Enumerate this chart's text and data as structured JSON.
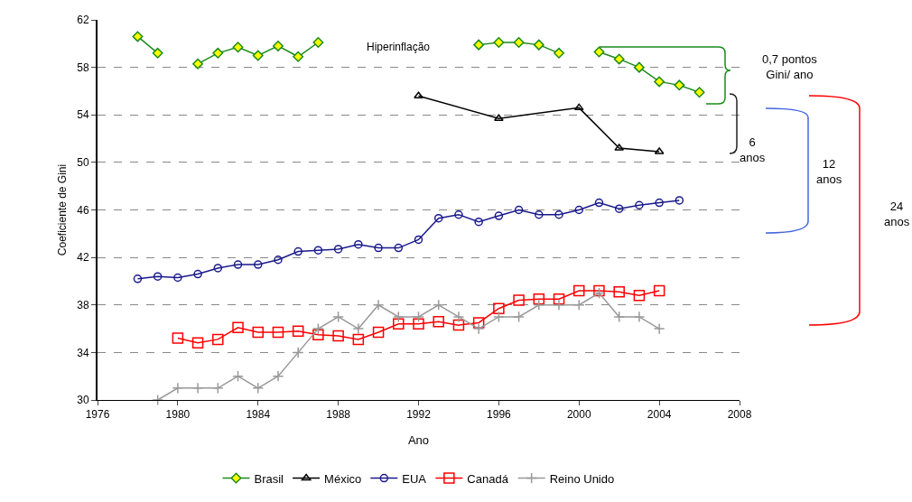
{
  "chart_data": {
    "type": "line",
    "xlabel": "Ano",
    "ylabel": "Coeficiente de Gini",
    "xlim": [
      1976,
      2008
    ],
    "xticks": [
      1976,
      1980,
      1984,
      1988,
      1992,
      1996,
      2000,
      2004,
      2008
    ],
    "ylim": [
      30,
      62
    ],
    "yticks": [
      30,
      34,
      38,
      42,
      46,
      50,
      54,
      58,
      62
    ],
    "grid": "y",
    "legend": "bottom",
    "x": [
      1978,
      1979,
      1980,
      1981,
      1982,
      1983,
      1984,
      1985,
      1986,
      1987,
      1988,
      1989,
      1990,
      1991,
      1992,
      1993,
      1994,
      1995,
      1996,
      1997,
      1998,
      1999,
      2000,
      2001,
      2002,
      2003,
      2004,
      2005,
      2006
    ],
    "series": [
      {
        "name": "Brasil",
        "color": "#1a8a1a",
        "marker": "diamond",
        "values": [
          60.6,
          59.2,
          null,
          58.3,
          59.2,
          59.7,
          59.0,
          59.8,
          58.9,
          60.1,
          null,
          null,
          null,
          null,
          null,
          null,
          null,
          59.9,
          60.1,
          60.1,
          59.9,
          59.2,
          null,
          59.3,
          58.7,
          58.0,
          56.8,
          56.5,
          55.9
        ]
      },
      {
        "name": "México",
        "color": "#000000",
        "marker": "triangle",
        "x": [
          1992,
          1996,
          2000,
          2002,
          2004
        ],
        "values": [
          55.6,
          53.7,
          54.6,
          51.2,
          50.9
        ]
      },
      {
        "name": "EUA",
        "color": "#1a1a8c",
        "marker": "circle",
        "x": [
          1978,
          1979,
          1980,
          1981,
          1982,
          1983,
          1984,
          1985,
          1986,
          1987,
          1988,
          1989,
          1990,
          1991,
          1992,
          1993,
          1994,
          1995,
          1996,
          1997,
          1998,
          1999,
          2000,
          2001,
          2002,
          2003,
          2004,
          2005
        ],
        "values": [
          40.2,
          40.4,
          40.3,
          40.6,
          41.1,
          41.4,
          41.4,
          41.8,
          42.5,
          42.6,
          42.7,
          43.1,
          42.8,
          42.8,
          43.5,
          45.3,
          45.6,
          45.0,
          45.5,
          46.0,
          45.6,
          45.6,
          46.0,
          46.6,
          46.1,
          46.4,
          46.6,
          46.8
        ]
      },
      {
        "name": "Canadá",
        "color": "#ff0000",
        "marker": "square",
        "x": [
          1980,
          1981,
          1982,
          1983,
          1984,
          1985,
          1986,
          1987,
          1988,
          1989,
          1990,
          1991,
          1992,
          1993,
          1994,
          1995,
          1996,
          1997,
          1998,
          1999,
          2000,
          2001,
          2002,
          2003,
          2004
        ],
        "values": [
          35.2,
          34.8,
          35.1,
          36.1,
          35.7,
          35.7,
          35.8,
          35.5,
          35.4,
          35.1,
          35.7,
          36.4,
          36.4,
          36.6,
          36.3,
          36.5,
          37.7,
          38.4,
          38.5,
          38.5,
          39.2,
          39.2,
          39.1,
          38.8,
          39.2
        ]
      },
      {
        "name": "Reino Unido",
        "color": "#999999",
        "marker": "cross",
        "x": [
          1979,
          1980,
          1981,
          1982,
          1983,
          1984,
          1985,
          1986,
          1987,
          1988,
          1989,
          1990,
          1991,
          1992,
          1993,
          1994,
          1995,
          1996,
          1997,
          1998,
          1999,
          2000,
          2001,
          2002,
          2003,
          2004
        ],
        "values": [
          30,
          31,
          31,
          31,
          32,
          31,
          32,
          34,
          36,
          37,
          36,
          38,
          37,
          37,
          38,
          37,
          36,
          37,
          37,
          38,
          38,
          38,
          39,
          37,
          37,
          36
        ]
      }
    ],
    "annotations": [
      "Hiperinflação",
      "0,7 pontos Gini/ ano",
      "6 anos",
      "12 anos",
      "24 anos"
    ]
  }
}
